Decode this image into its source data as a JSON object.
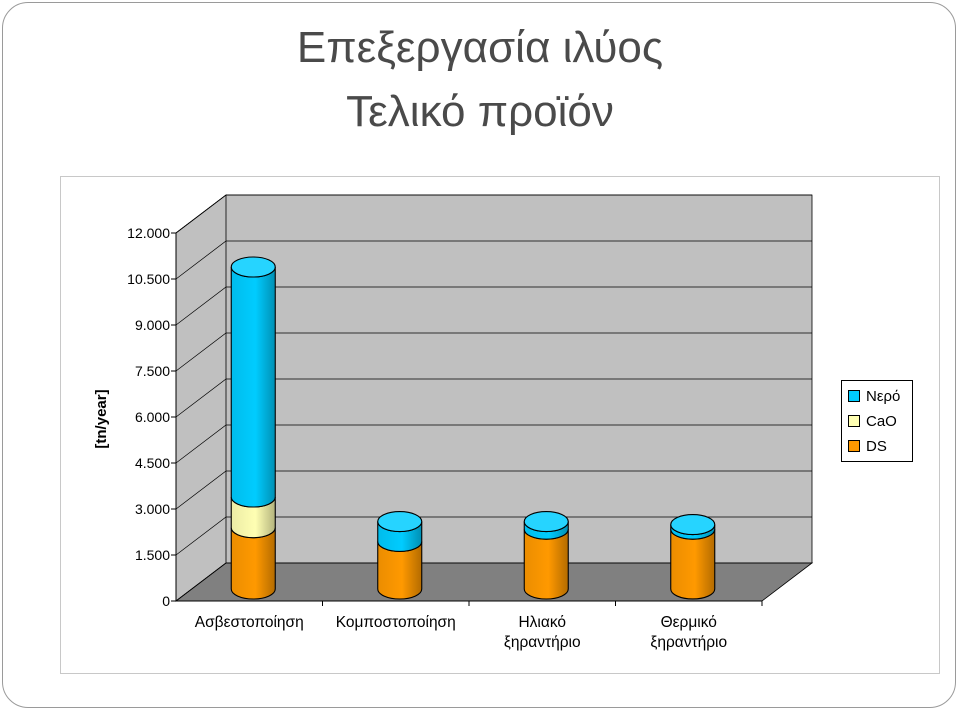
{
  "title": {
    "line1": "Επεξεργασία ιλύος",
    "line2": "Τελικό προϊόν"
  },
  "chart_data": {
    "type": "bar",
    "stacked": true,
    "style": "3d-cylinder",
    "categories": [
      [
        "Ασβεστοποίηση"
      ],
      [
        "Κομποστοποίηση"
      ],
      [
        "Ηλιακό",
        "ξηραντήριο"
      ],
      [
        "Θερμικό",
        "ξηραντήριο"
      ]
    ],
    "series": [
      {
        "name": "DS",
        "color": "#ff9900",
        "values": [
          2000,
          1550,
          1950,
          1950
        ]
      },
      {
        "name": "CaO",
        "color": "#ffffb3",
        "values": [
          1000,
          0,
          0,
          0
        ]
      },
      {
        "name": "Νερό",
        "color": "#00ccff",
        "values": [
          7500,
          650,
          250,
          150
        ]
      }
    ],
    "ylabel": "[tn/year]",
    "ylim": [
      0,
      12000
    ],
    "yticks": [
      0,
      1500,
      3000,
      4500,
      6000,
      7500,
      9000,
      10500,
      12000
    ],
    "ytick_labels": [
      "0",
      "1.500",
      "3.000",
      "4.500",
      "6.000",
      "7.500",
      "9.000",
      "10.500",
      "12.000"
    ],
    "grid": true,
    "legend_position": "right",
    "legend_order": [
      "Νερό",
      "CaO",
      "DS"
    ],
    "wall_color": "#c0c0c0",
    "floor_color": "#808080"
  }
}
